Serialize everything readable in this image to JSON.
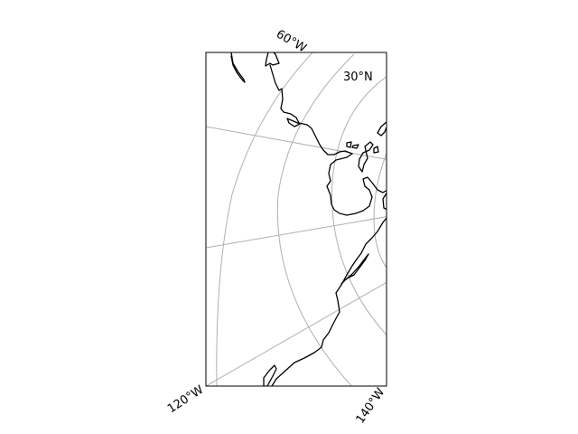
{
  "map": {
    "projection_hint": "conic-like polar view, North America / Pacific coast",
    "gridline_color": "#b0b0b0",
    "coastline_color": "#000000",
    "frame_color": "#000000",
    "labels": {
      "lon_top": "60°W",
      "lat_inner": "30°N",
      "lon_bottom_left": "120°W",
      "lon_bottom_right": "140°W"
    }
  }
}
